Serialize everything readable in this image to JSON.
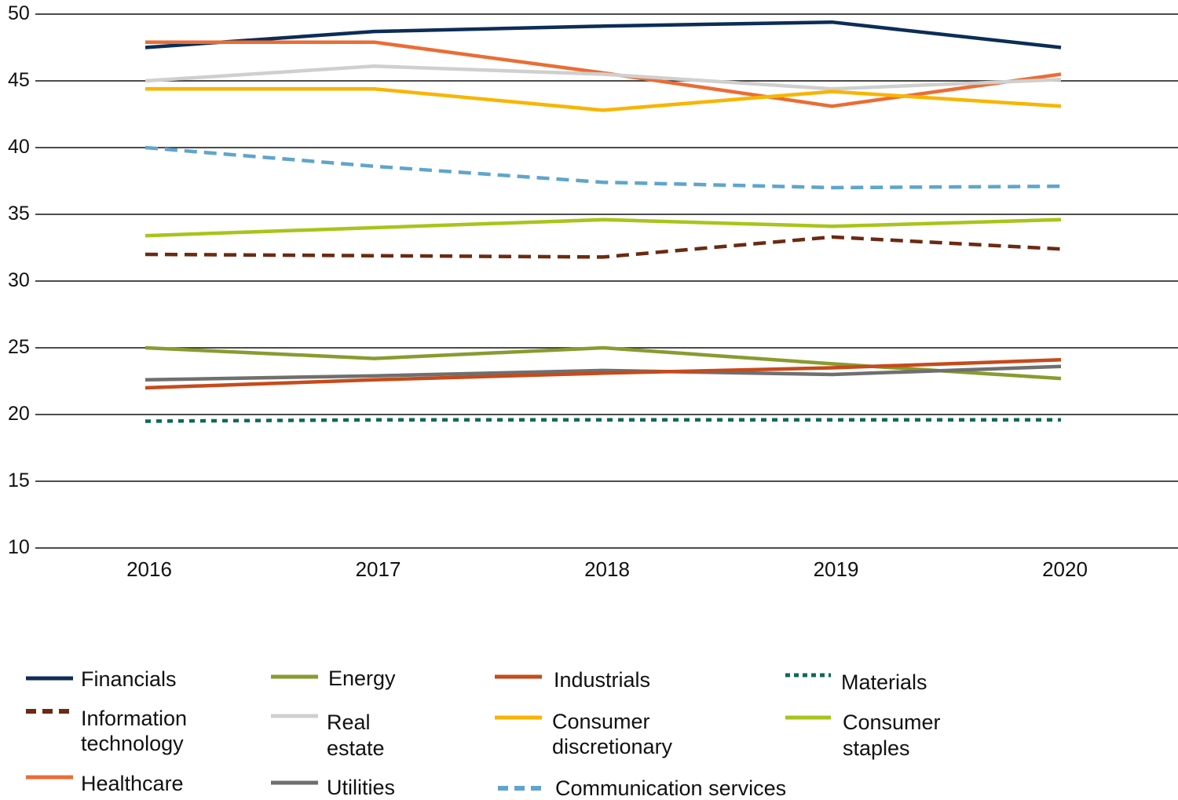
{
  "chart_data": {
    "type": "line",
    "title": "",
    "xlabel": "",
    "ylabel": "",
    "categories": [
      "2016",
      "2017",
      "2018",
      "2019",
      "2020"
    ],
    "ylim": [
      10,
      50
    ],
    "yticks": [
      "10",
      "15",
      "20",
      "25",
      "30",
      "35",
      "40",
      "45",
      "50"
    ],
    "grid": true,
    "legend_position": "bottom",
    "series": [
      {
        "name": "Financials",
        "color": "#0c2d57",
        "style": "solid",
        "values": [
          47.5,
          48.7,
          49.1,
          49.4,
          47.5
        ]
      },
      {
        "name": "Information technology",
        "color": "#6b2a12",
        "style": "dashed",
        "values": [
          32.0,
          31.9,
          31.8,
          33.3,
          32.4
        ]
      },
      {
        "name": "Healthcare",
        "color": "#ea6d35",
        "style": "solid",
        "values": [
          47.9,
          47.9,
          45.6,
          43.1,
          45.5
        ]
      },
      {
        "name": "Energy",
        "color": "#8a9b2f",
        "style": "solid",
        "values": [
          25.0,
          24.2,
          25.0,
          23.8,
          22.7
        ]
      },
      {
        "name": "Real estate",
        "color": "#cfcfcf",
        "style": "solid",
        "values": [
          45.0,
          46.1,
          45.5,
          44.4,
          45.1
        ]
      },
      {
        "name": "Utilities",
        "color": "#6f6f6f",
        "style": "solid",
        "values": [
          22.6,
          22.9,
          23.3,
          23.0,
          23.6
        ]
      },
      {
        "name": "Industrials",
        "color": "#c64b1b",
        "style": "solid",
        "values": [
          22.0,
          22.6,
          23.1,
          23.5,
          24.1
        ]
      },
      {
        "name": "Consumer discretionary",
        "color": "#f8b500",
        "style": "solid",
        "values": [
          44.4,
          44.4,
          42.8,
          44.2,
          43.1
        ]
      },
      {
        "name": "Communication services",
        "color": "#5fa5cc",
        "style": "dashed",
        "values": [
          40.0,
          38.6,
          37.4,
          37.0,
          37.1
        ]
      },
      {
        "name": "Materials",
        "color": "#0d6a5a",
        "style": "dotted",
        "values": [
          19.5,
          19.6,
          19.6,
          19.6,
          19.6
        ]
      },
      {
        "name": "Consumer staples",
        "color": "#a9c41a",
        "style": "solid",
        "values": [
          33.4,
          34.0,
          34.6,
          34.1,
          34.6
        ]
      }
    ]
  }
}
